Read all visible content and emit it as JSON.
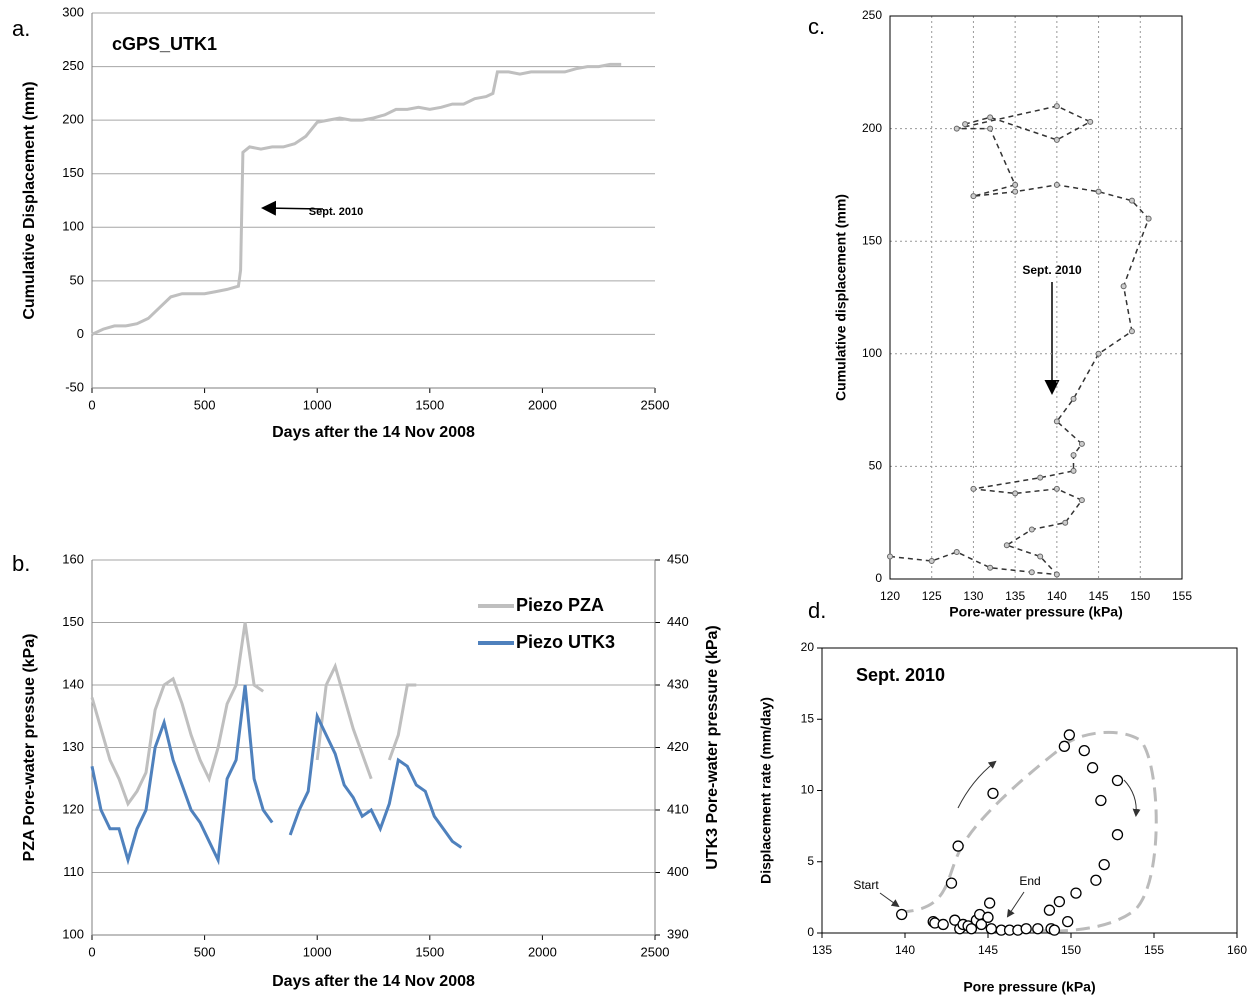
{
  "chart_data": [
    {
      "type": "line",
      "panel_label": "a.",
      "title": "cGPS_UTK1",
      "x_label": "Days after the 14 Nov 2008",
      "y_label": "Cumulative Displacement (mm)",
      "annotations": [
        "Sept. 2010"
      ],
      "x": [
        0,
        50,
        100,
        150,
        200,
        250,
        300,
        350,
        400,
        450,
        500,
        550,
        600,
        650,
        660,
        670,
        700,
        750,
        800,
        850,
        900,
        950,
        1000,
        1050,
        1100,
        1150,
        1200,
        1250,
        1300,
        1350,
        1400,
        1450,
        1500,
        1550,
        1600,
        1650,
        1700,
        1750,
        1780,
        1800,
        1850,
        1900,
        1950,
        2000,
        2050,
        2100,
        2150,
        2200,
        2250,
        2300,
        2350
      ],
      "series": [
        {
          "color": "#bfbfbf",
          "values": [
            0,
            5,
            8,
            8,
            10,
            15,
            25,
            35,
            38,
            38,
            38,
            40,
            42,
            45,
            60,
            170,
            175,
            173,
            175,
            175,
            178,
            185,
            198,
            200,
            202,
            200,
            200,
            202,
            205,
            210,
            210,
            212,
            210,
            212,
            215,
            215,
            220,
            222,
            225,
            245,
            245,
            243,
            245,
            245,
            245,
            245,
            248,
            250,
            250,
            252,
            252
          ]
        }
      ],
      "xlim": [
        0,
        2500
      ],
      "xticks": [
        0,
        500,
        1000,
        1500,
        2000,
        2500
      ],
      "ylim": [
        -50,
        300
      ],
      "yticks": [
        -50,
        0,
        50,
        100,
        150,
        200,
        250,
        300
      ],
      "grid": "y"
    },
    {
      "type": "line",
      "panel_label": "b.",
      "x_label": "Days after the 14 Nov 2008",
      "y_label": "PZA Pore-water pressue (kPa)",
      "y2_label": "UTK3 Pore-water pressure (kPa)",
      "legend": "upper right",
      "x": [
        0,
        40,
        80,
        120,
        160,
        200,
        240,
        280,
        320,
        360,
        400,
        440,
        480,
        520,
        560,
        600,
        640,
        680,
        720,
        760,
        800,
        840,
        880,
        920,
        960,
        1000,
        1040,
        1080,
        1120,
        1160,
        1200,
        1240,
        1280,
        1320,
        1360,
        1400,
        1440,
        1480,
        1520,
        1560,
        1600,
        1640
      ],
      "series": [
        {
          "name": "Piezo PZA",
          "color": "#bfbfbf",
          "values": [
            138,
            133,
            128,
            125,
            121,
            123,
            126,
            136,
            140,
            141,
            137,
            132,
            128,
            125,
            130,
            137,
            140,
            150,
            140,
            139,
            null,
            null,
            null,
            null,
            null,
            128,
            140,
            143,
            138,
            133,
            129,
            125,
            null,
            128,
            132,
            140,
            140,
            null,
            null,
            null,
            null,
            null
          ]
        },
        {
          "name": "Piezo UTK3",
          "color": "#4f81bd",
          "axis": "y2",
          "values": [
            417,
            410,
            407,
            407,
            402,
            407,
            410,
            420,
            424,
            418,
            414,
            410,
            408,
            405,
            402,
            415,
            418,
            430,
            415,
            410,
            408,
            null,
            406,
            410,
            413,
            425,
            422,
            419,
            414,
            412,
            409,
            410,
            407,
            411,
            418,
            417,
            414,
            413,
            409,
            407,
            405,
            404
          ]
        }
      ],
      "xlim": [
        0,
        2500
      ],
      "xticks": [
        0,
        500,
        1000,
        1500,
        2000,
        2500
      ],
      "ylim": [
        100,
        160
      ],
      "yticks": [
        100,
        110,
        120,
        130,
        140,
        150,
        160
      ],
      "y2lim": [
        390,
        450
      ],
      "y2ticks": [
        390,
        400,
        410,
        420,
        430,
        440,
        450
      ],
      "grid": "y"
    },
    {
      "type": "line",
      "panel_label": "c.",
      "x_label": "Pore-water pressure (kPa)",
      "y_label": "Cumulative displacement (mm)",
      "annotations": [
        "Sept. 2010"
      ],
      "x": [
        120,
        125,
        128,
        132,
        137,
        140,
        138,
        134,
        137,
        141,
        143,
        140,
        135,
        130,
        138,
        142,
        142,
        143,
        140,
        142,
        145,
        149,
        148,
        151,
        149,
        145,
        140,
        135,
        130,
        135,
        132,
        128,
        140,
        144,
        140,
        132,
        129
      ],
      "series": [
        {
          "color": "#333333",
          "values": [
            10,
            8,
            12,
            5,
            3,
            2,
            10,
            15,
            22,
            25,
            35,
            40,
            38,
            40,
            45,
            48,
            55,
            60,
            70,
            80,
            100,
            110,
            130,
            160,
            168,
            172,
            175,
            172,
            170,
            175,
            200,
            200,
            210,
            203,
            195,
            205,
            202
          ]
        }
      ],
      "xlim": [
        120,
        155
      ],
      "xticks": [
        120,
        125,
        130,
        135,
        140,
        145,
        150,
        155
      ],
      "ylim": [
        0,
        250
      ],
      "yticks": [
        0,
        50,
        100,
        150,
        200,
        250
      ],
      "grid": "both"
    },
    {
      "type": "scatter",
      "panel_label": "d.",
      "title": "Sept. 2010",
      "x_label": "Pore pressure (kPa)",
      "y_label": "Displacement rate (mm/day)",
      "annotations": [
        "Start",
        "End"
      ],
      "x": [
        139.8,
        141.7,
        141.8,
        142.3,
        143,
        143.3,
        143.5,
        143.8,
        144,
        144.3,
        144.5,
        144.6,
        145,
        145.2,
        145.8,
        146.3,
        146.8,
        147.3,
        148,
        148.8,
        149,
        149.8,
        148.7,
        149.3,
        150.3,
        151.5,
        152,
        152.8,
        151.8,
        152.8,
        151.3,
        150.8,
        149.6,
        149.9,
        145.3,
        143.2,
        142.8,
        145.1
      ],
      "values": [
        1.3,
        0.8,
        0.7,
        0.6,
        0.9,
        0.3,
        0.6,
        0.5,
        0.3,
        0.9,
        1.3,
        0.6,
        1.1,
        0.3,
        0.2,
        0.2,
        0.2,
        0.3,
        0.3,
        0.3,
        0.2,
        0.8,
        1.6,
        2.2,
        2.8,
        3.7,
        4.8,
        6.9,
        9.3,
        10.7,
        11.6,
        12.8,
        13.1,
        13.9,
        9.8,
        6.1,
        3.5,
        2.1
      ],
      "xlim": [
        135,
        160
      ],
      "xticks": [
        135,
        140,
        145,
        150,
        155,
        160
      ],
      "ylim": [
        0,
        20
      ],
      "yticks": [
        0,
        5,
        10,
        15,
        20
      ],
      "grid": false
    }
  ]
}
